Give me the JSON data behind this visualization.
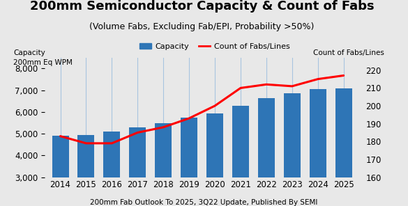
{
  "title": "200mm Semiconductor Capacity & Count of Fabs",
  "subtitle": "(Volume Fabs, Excluding Fab/EPI, Probability >50%)",
  "ylabel_left_line1": "Capacity",
  "ylabel_left_line2": "200mm Eq WPM",
  "ylabel_right": "Count of Fabs/Lines",
  "xlabel_note": "200mm Fab Outlook To 2025, 3Q22 Update, Published By SEMI",
  "years": [
    2014,
    2015,
    2016,
    2017,
    2018,
    2019,
    2020,
    2021,
    2022,
    2023,
    2024,
    2025
  ],
  "capacity": [
    4900,
    4950,
    5100,
    5280,
    5500,
    5730,
    5920,
    6300,
    6650,
    6850,
    7050,
    7100
  ],
  "fabs_count": [
    183,
    179,
    179,
    185,
    188,
    193,
    200,
    210,
    212,
    211,
    215,
    217
  ],
  "bar_color": "#2E75B6",
  "line_color": "#FF0000",
  "grid_color": "#A8C4E0",
  "bg_color": "#E8E8E8",
  "ylim_left": [
    3000,
    8500
  ],
  "ylim_right": [
    160,
    227
  ],
  "yticks_left": [
    3000,
    4000,
    5000,
    6000,
    7000,
    8000
  ],
  "yticks_right": [
    160,
    170,
    180,
    190,
    200,
    210,
    220
  ],
  "legend_capacity": "Capacity",
  "legend_fabs": "Count of Fabs/Lines",
  "title_fontsize": 13,
  "subtitle_fontsize": 9,
  "axis_label_fontsize": 7.5,
  "tick_fontsize": 8.5,
  "note_fontsize": 7.5
}
